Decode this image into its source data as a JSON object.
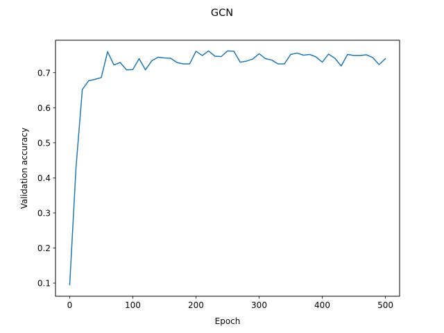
{
  "chart_data": {
    "type": "line",
    "title": "GCN",
    "xlabel": "Epoch",
    "ylabel": "Validation accuracy",
    "xlim": [
      -22.5,
      522.5
    ],
    "ylim": [
      0.0625,
      0.7925
    ],
    "xticks": [
      0,
      100,
      200,
      300,
      400,
      500
    ],
    "yticks": [
      0.1,
      0.2,
      0.3,
      0.4,
      0.5,
      0.6,
      0.7
    ],
    "grid": false,
    "series": [
      {
        "color": "#1f77b4",
        "x": [
          0,
          10,
          20,
          30,
          40,
          50,
          60,
          70,
          80,
          90,
          100,
          110,
          120,
          130,
          140,
          150,
          160,
          170,
          180,
          190,
          200,
          210,
          220,
          230,
          240,
          250,
          260,
          270,
          280,
          290,
          300,
          310,
          320,
          330,
          340,
          350,
          360,
          370,
          380,
          390,
          400,
          410,
          420,
          430,
          440,
          450,
          460,
          470,
          480,
          490,
          500
        ],
        "y": [
          0.095,
          0.43,
          0.652,
          0.677,
          0.681,
          0.686,
          0.76,
          0.722,
          0.729,
          0.708,
          0.709,
          0.74,
          0.708,
          0.734,
          0.744,
          0.742,
          0.741,
          0.729,
          0.725,
          0.725,
          0.761,
          0.749,
          0.762,
          0.747,
          0.746,
          0.762,
          0.761,
          0.73,
          0.733,
          0.739,
          0.754,
          0.74,
          0.736,
          0.725,
          0.725,
          0.752,
          0.756,
          0.75,
          0.752,
          0.745,
          0.73,
          0.753,
          0.741,
          0.719,
          0.752,
          0.749,
          0.749,
          0.751,
          0.743,
          0.723,
          0.74
        ]
      }
    ]
  }
}
